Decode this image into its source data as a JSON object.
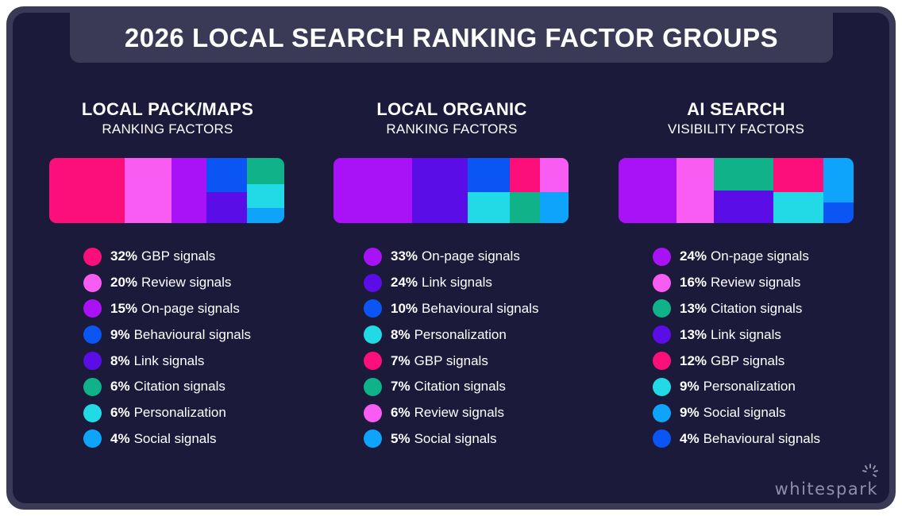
{
  "title": "2026 LOCAL SEARCH RANKING FACTOR GROUPS",
  "brand": "whitespark",
  "colors": {
    "gbp": "#fc0f7b",
    "review": "#f85cf3",
    "onpage": "#a911f6",
    "behavioural": "#0b55f5",
    "link": "#5b0de8",
    "citation": "#10b289",
    "personalization": "#22d9e6",
    "social": "#0ea4fc"
  },
  "chart_data": [
    {
      "type": "treemap",
      "title": "LOCAL PACK/MAPS",
      "subtitle": "RANKING FACTORS",
      "series": [
        {
          "name": "GBP signals",
          "value": 32,
          "color_key": "gbp"
        },
        {
          "name": "Review signals",
          "value": 20,
          "color_key": "review"
        },
        {
          "name": "On-page signals",
          "value": 15,
          "color_key": "onpage"
        },
        {
          "name": "Behavioural signals",
          "value": 9,
          "color_key": "behavioural"
        },
        {
          "name": "Link signals",
          "value": 8,
          "color_key": "link"
        },
        {
          "name": "Citation signals",
          "value": 6,
          "color_key": "citation"
        },
        {
          "name": "Personalization",
          "value": 6,
          "color_key": "personalization"
        },
        {
          "name": "Social signals",
          "value": 4,
          "color_key": "social"
        }
      ]
    },
    {
      "type": "treemap",
      "title": "LOCAL ORGANIC",
      "subtitle": "RANKING FACTORS",
      "series": [
        {
          "name": "On-page signals",
          "value": 33,
          "color_key": "onpage"
        },
        {
          "name": "Link signals",
          "value": 24,
          "color_key": "link"
        },
        {
          "name": "Behavioural signals",
          "value": 10,
          "color_key": "behavioural"
        },
        {
          "name": "Personalization",
          "value": 8,
          "color_key": "personalization"
        },
        {
          "name": "GBP signals",
          "value": 7,
          "color_key": "gbp"
        },
        {
          "name": "Citation signals",
          "value": 7,
          "color_key": "citation"
        },
        {
          "name": "Review signals",
          "value": 6,
          "color_key": "review"
        },
        {
          "name": "Social signals",
          "value": 5,
          "color_key": "social"
        }
      ]
    },
    {
      "type": "treemap",
      "title": "AI SEARCH",
      "subtitle": "VISIBILITY FACTORS",
      "series": [
        {
          "name": "On-page signals",
          "value": 24,
          "color_key": "onpage"
        },
        {
          "name": "Review signals",
          "value": 16,
          "color_key": "review"
        },
        {
          "name": "Citation signals",
          "value": 13,
          "color_key": "citation"
        },
        {
          "name": "Link signals",
          "value": 13,
          "color_key": "link"
        },
        {
          "name": "GBP signals",
          "value": 12,
          "color_key": "gbp"
        },
        {
          "name": "Personalization",
          "value": 9,
          "color_key": "personalization"
        },
        {
          "name": "Social signals",
          "value": 9,
          "color_key": "social"
        },
        {
          "name": "Behavioural signals",
          "value": 4,
          "color_key": "behavioural"
        }
      ]
    }
  ]
}
